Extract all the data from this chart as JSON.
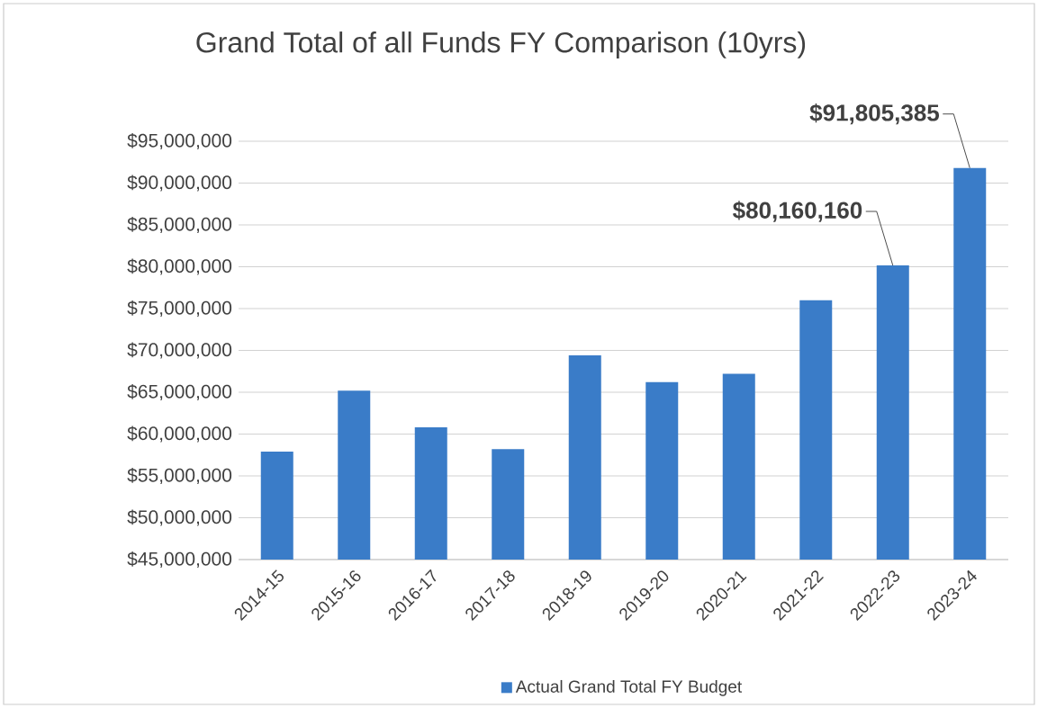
{
  "chart_data": {
    "type": "bar",
    "title": "Grand Total of all Funds FY Comparison  (10yrs)",
    "categories": [
      "2014-15",
      "2015-16",
      "2016-17",
      "2017-18",
      "2018-19",
      "2019-20",
      "2020-21",
      "2021-22",
      "2022-23",
      "2023-24"
    ],
    "series": [
      {
        "name": "Actual Grand Total FY Budget",
        "color": "#3a7cc8",
        "values": [
          57900000,
          65200000,
          60800000,
          58200000,
          69400000,
          66200000,
          67200000,
          76000000,
          80160160,
          91805385
        ],
        "value_labels": [
          null,
          null,
          null,
          null,
          null,
          null,
          null,
          null,
          "$80,160,160",
          "$91,805,385"
        ]
      }
    ],
    "ylim": [
      45000000,
      95000000
    ],
    "yticks": [
      {
        "value": 45000000,
        "label": "$45,000,000"
      },
      {
        "value": 50000000,
        "label": "$50,000,000"
      },
      {
        "value": 55000000,
        "label": "$55,000,000"
      },
      {
        "value": 60000000,
        "label": "$60,000,000"
      },
      {
        "value": 65000000,
        "label": "$65,000,000"
      },
      {
        "value": 70000000,
        "label": "$70,000,000"
      },
      {
        "value": 75000000,
        "label": "$75,000,000"
      },
      {
        "value": 80000000,
        "label": "$80,000,000"
      },
      {
        "value": 85000000,
        "label": "$85,000,000"
      },
      {
        "value": 90000000,
        "label": "$90,000,000"
      },
      {
        "value": 95000000,
        "label": "$95,000,000"
      }
    ],
    "grid": "y",
    "legend": "bottom"
  }
}
